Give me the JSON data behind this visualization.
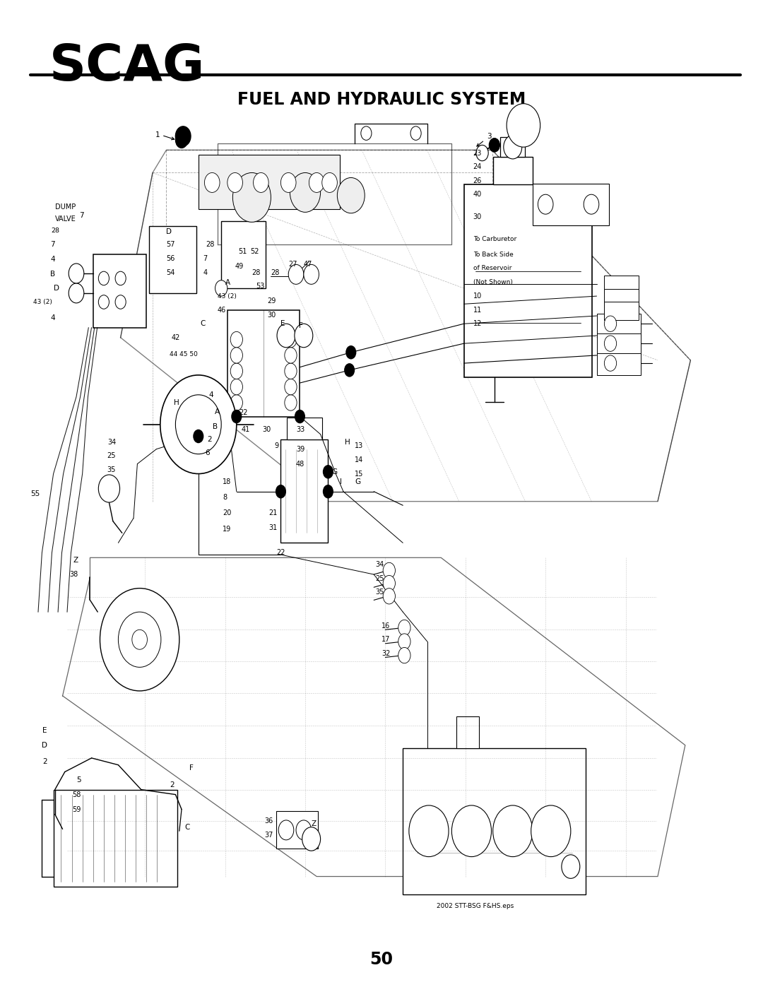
{
  "title": "FUEL AND HYDRAULIC SYSTEM",
  "logo_text": "SCAG",
  "page_number": "50",
  "filename": "2002 STT-BSG F&HS.eps",
  "bg_color": "#ffffff",
  "fig_width": 10.8,
  "fig_height": 13.97,
  "dpi": 100
}
